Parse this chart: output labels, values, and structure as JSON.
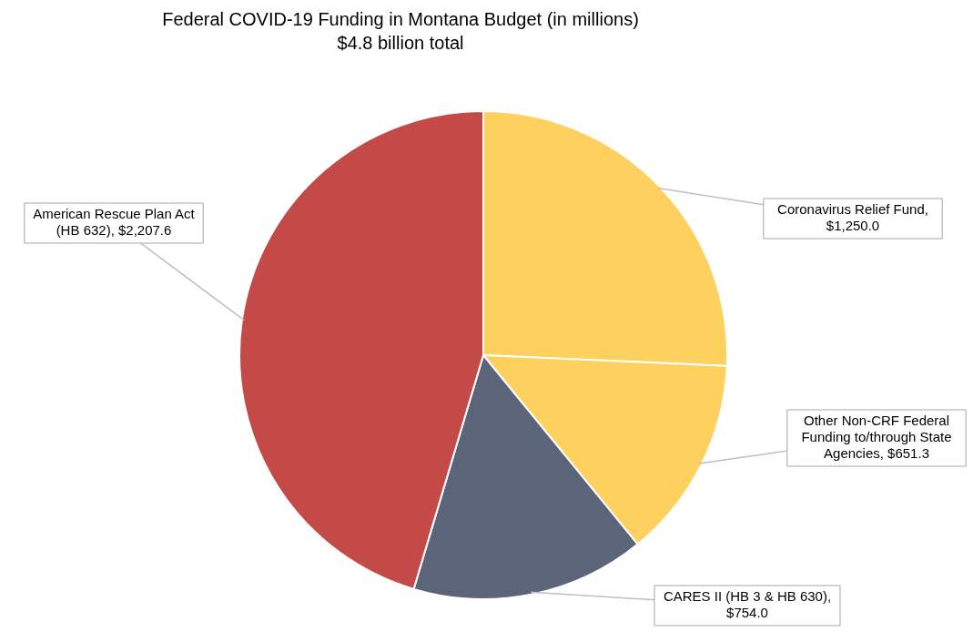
{
  "chart_data": {
    "type": "pie",
    "title": "Federal COVID-19 Funding in Montana Budget (in millions)",
    "subtitle": "$4.8 billion total",
    "categories": [
      "Coronavirus Relief Fund, $1,250.0",
      "Other Non-CRF Federal Funding to/through State Agencies, $651.3",
      "CARES II (HB 3 & HB 630), $754.0",
      "American Rescue Plan Act (HB 632), $2,207.6"
    ],
    "values": [
      1250.0,
      651.3,
      754.0,
      2207.6
    ],
    "colors": [
      "#fed15e",
      "#fed15e",
      "#5b6479",
      "#c44a48"
    ]
  }
}
